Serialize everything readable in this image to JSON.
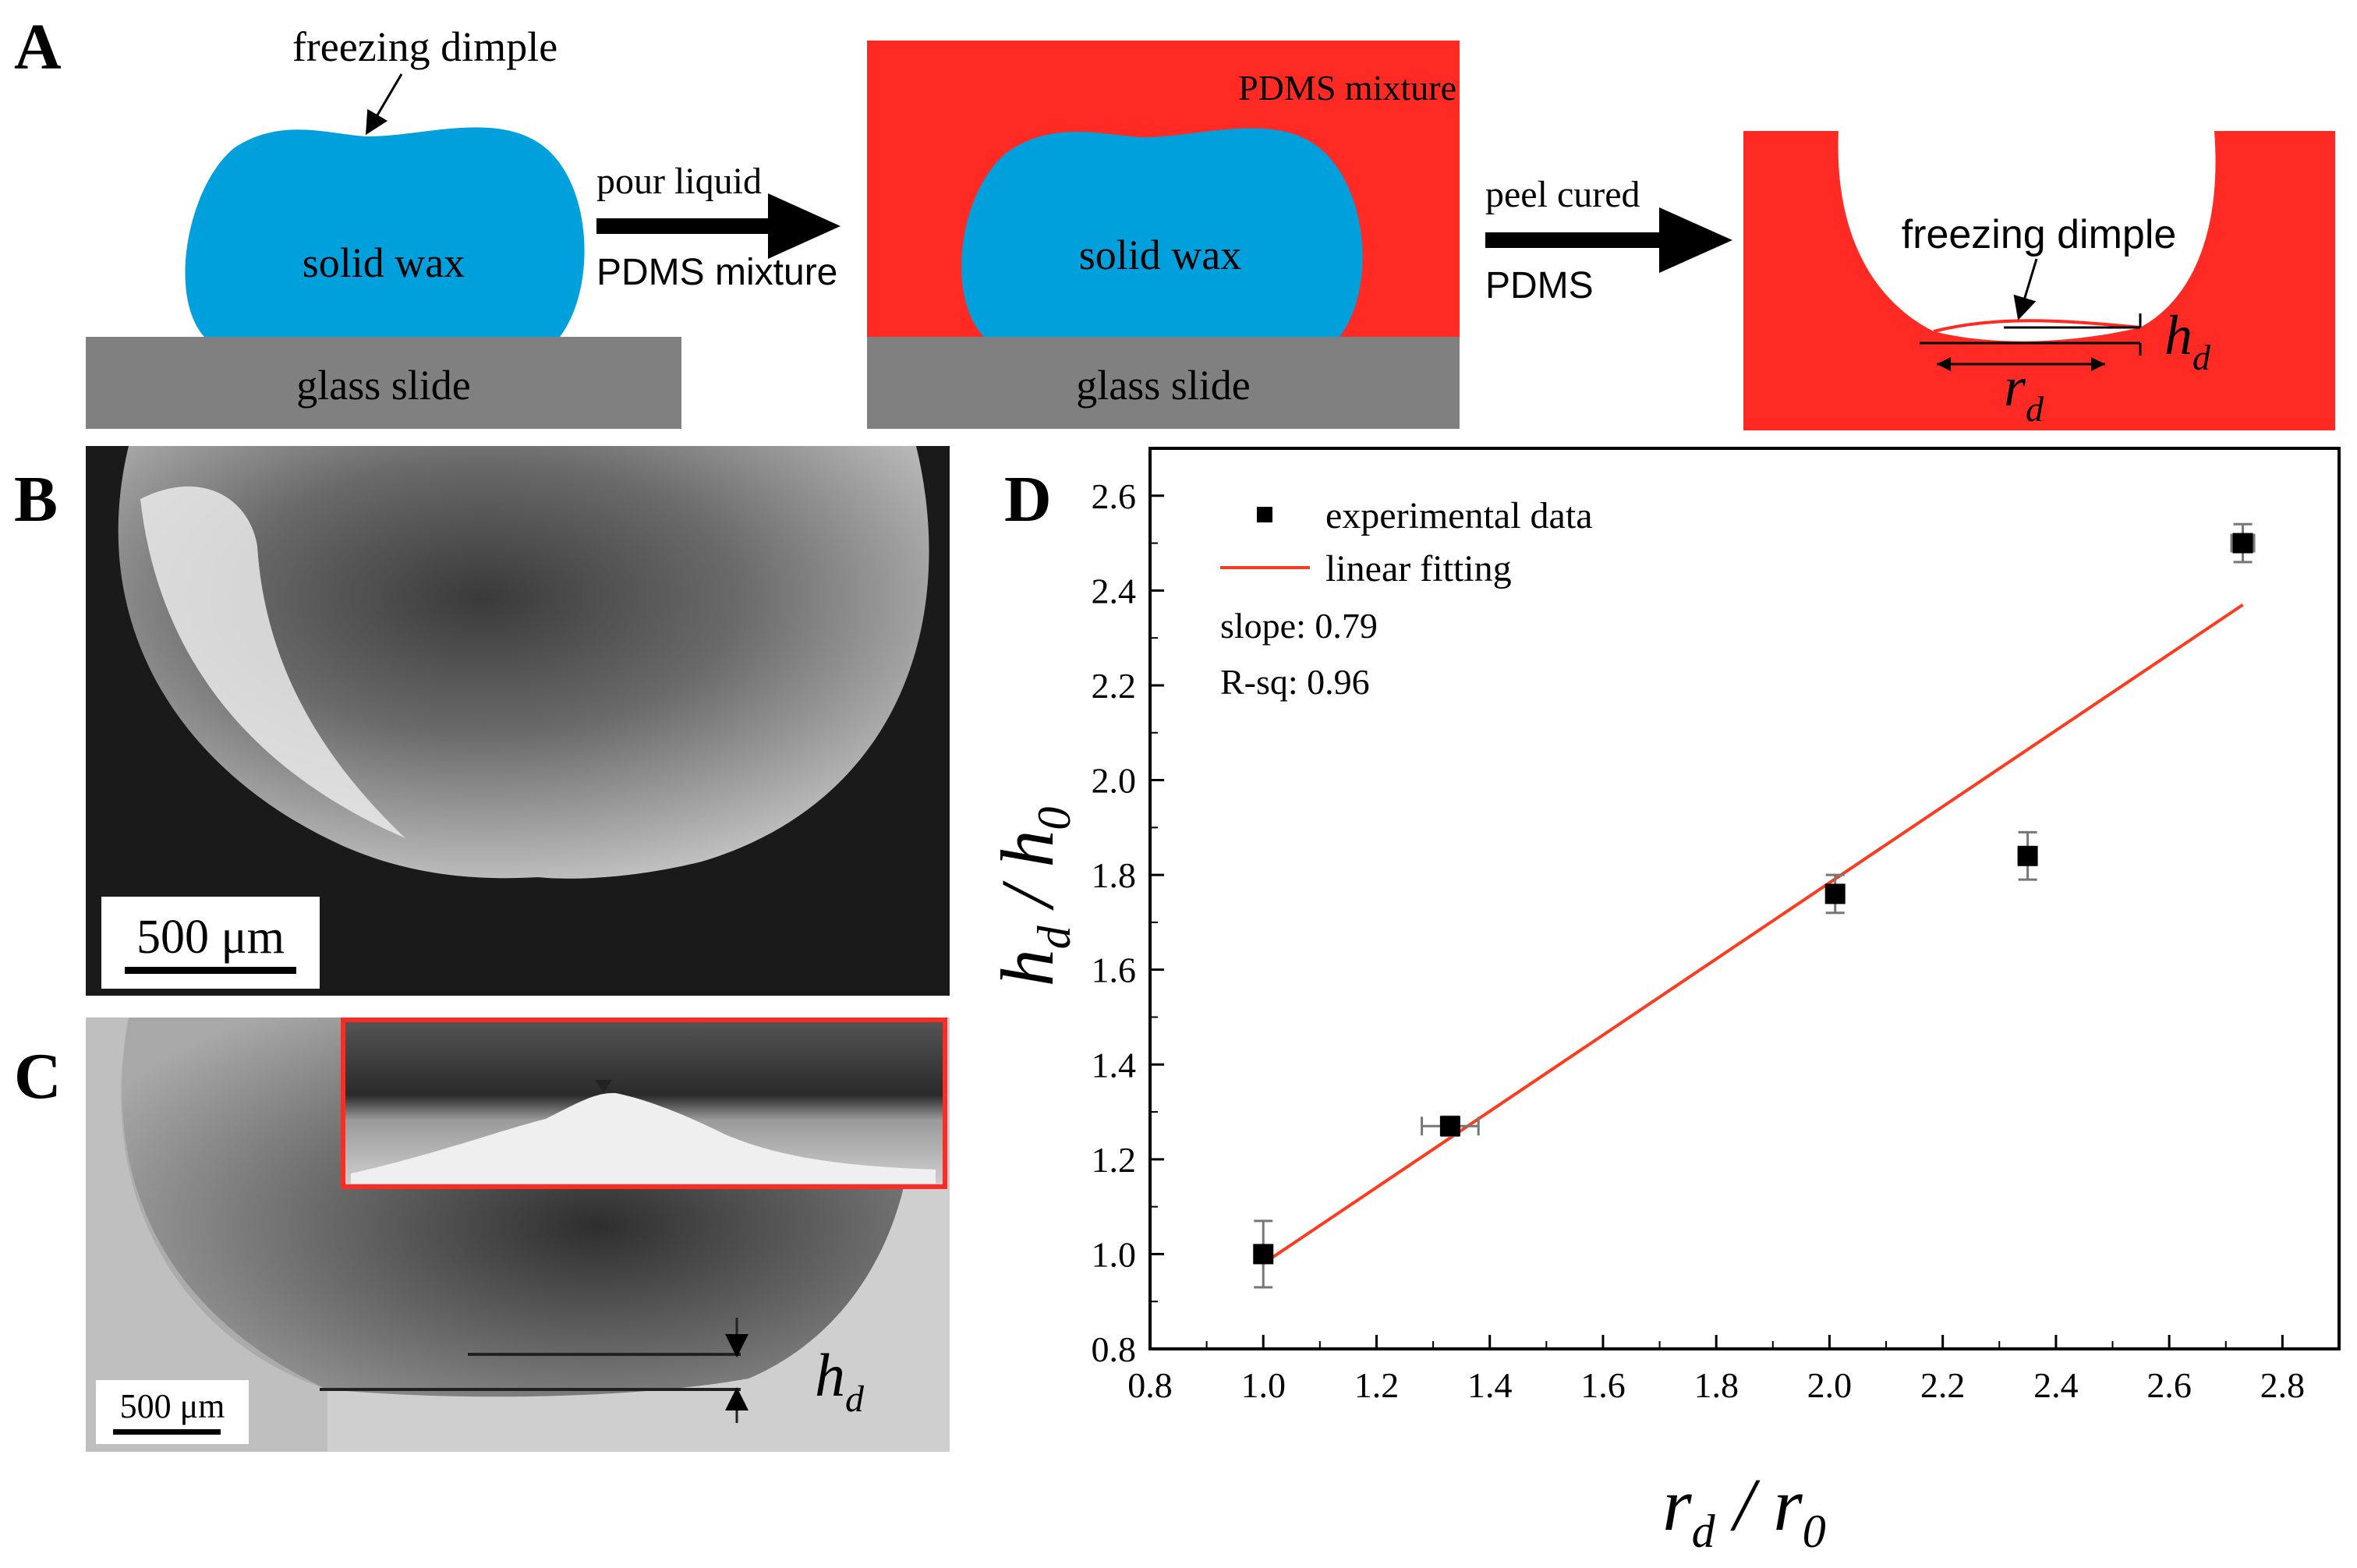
{
  "panel_labels": {
    "a": "A",
    "b": "B",
    "c": "C",
    "d": "D"
  },
  "colors": {
    "wax": "#00a0dc",
    "pdms": "#ff2a23",
    "glass": "#808080",
    "fit_line": "#ff3b1f",
    "marker": "#000000"
  },
  "panel_a": {
    "freezing_dimple_label": "freezing dimple",
    "solid_wax_label_1": "solid wax",
    "solid_wax_label_2": "solid wax",
    "glass_slide_label_1": "glass slide",
    "glass_slide_label_2": "glass slide",
    "arrow1_top": "pour liquid",
    "arrow1_bottom": "PDMS mixture",
    "pdms_mixture_label": "PDMS mixture",
    "arrow2_top": "peel cured",
    "arrow2_bottom": "PDMS",
    "freezing_dimple_label_2": "freezing dimple",
    "hd_label": "h",
    "hd_sub": "d",
    "rd_label": "r",
    "rd_sub": "d"
  },
  "panel_b": {
    "scalebar_label": "500 μm"
  },
  "panel_c": {
    "scalebar_label": "500 μm",
    "hd_label": "h",
    "hd_sub": "d"
  },
  "chart_data": {
    "type": "scatter",
    "x": [
      1.0,
      1.33,
      2.01,
      2.35,
      2.73
    ],
    "y": [
      1.0,
      1.27,
      1.76,
      1.84,
      2.5
    ],
    "xerr": [
      0.0,
      0.05,
      0.0,
      0.0,
      0.02
    ],
    "yerr": [
      0.07,
      0.02,
      0.04,
      0.05,
      0.04
    ],
    "fit": {
      "x": [
        1.0,
        2.73
      ],
      "y": [
        0.98,
        2.37
      ]
    },
    "xlim": [
      0.8,
      2.9
    ],
    "ylim": [
      0.8,
      2.7
    ],
    "xticks": [
      "0.8",
      "1.0",
      "1.2",
      "1.4",
      "1.6",
      "1.8",
      "2.0",
      "2.2",
      "2.4",
      "2.6",
      "2.8"
    ],
    "yticks": [
      "0.8",
      "1.0",
      "1.2",
      "1.4",
      "1.6",
      "1.8",
      "2.0",
      "2.2",
      "2.4",
      "2.6"
    ],
    "xlabel": {
      "num": "r",
      "num_sub": "d",
      "sep": " / ",
      "den": "r",
      "den_sub": "0"
    },
    "ylabel": {
      "num": "h",
      "num_sub": "d",
      "sep": " / ",
      "den": "h",
      "den_sub": "0"
    },
    "legend": {
      "points": "experimental data",
      "line": "linear fitting",
      "slope": "slope: 0.79",
      "rsq": "R-sq: 0.96"
    },
    "legend_position": "top-left"
  }
}
